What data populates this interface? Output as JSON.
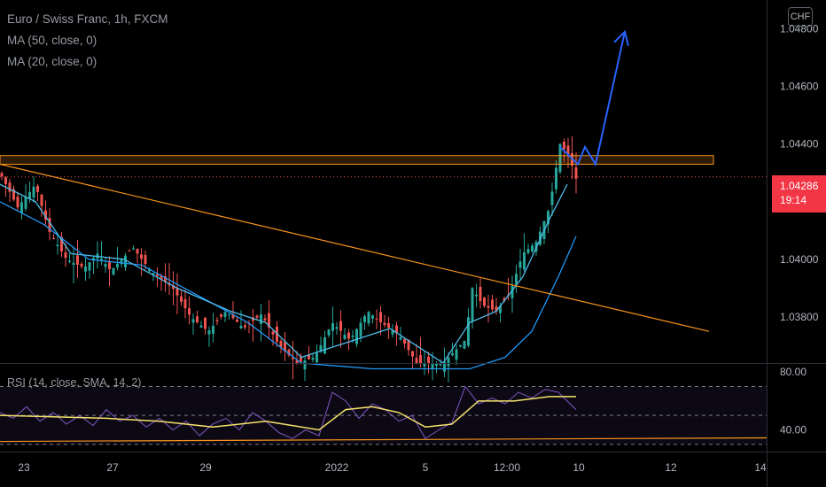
{
  "legend": {
    "symbol": "Euro / Swiss Franc, 1h, FXCM",
    "ma50": "MA (50, close, 0)",
    "ma20": "MA (20, close, 0)"
  },
  "rsi_legend": "RSI (14, close, SMA, 14, 2)",
  "currency": "CHF",
  "last_price": {
    "value": "1.04286",
    "countdown": "19:14"
  },
  "colors": {
    "up": "#26a69a",
    "down": "#ef5350",
    "ma50": "#2196f3",
    "ma20": "#4dbbe8",
    "trendline": "#f7941d",
    "arrow": "#2962ff",
    "rsi": "#7e57c2",
    "rsi_ma": "#f5e36b",
    "price_tag": "#f23645"
  },
  "chart_data": [
    {
      "type": "candlestick",
      "title": "Euro / Swiss Franc, 1h, FXCM",
      "y_ticks": [
        "1.04800",
        "1.04600",
        "1.04400",
        "1.04000",
        "1.03800"
      ],
      "y_range": [
        1.0364,
        1.049
      ],
      "x_ticks": [
        "23",
        "27",
        "29",
        "2022",
        "5",
        "12:00",
        "10",
        "12",
        "14"
      ],
      "last_price": 1.04286,
      "close_path": [
        [
          0,
          1.043
        ],
        [
          20,
          1.0418
        ],
        [
          40,
          1.0426
        ],
        [
          55,
          1.041
        ],
        [
          75,
          1.04
        ],
        [
          95,
          1.0397
        ],
        [
          110,
          1.0402
        ],
        [
          125,
          1.0396
        ],
        [
          150,
          1.0404
        ],
        [
          170,
          1.0396
        ],
        [
          195,
          1.039
        ],
        [
          215,
          1.038
        ],
        [
          235,
          1.0375
        ],
        [
          255,
          1.0382
        ],
        [
          275,
          1.0376
        ],
        [
          295,
          1.0381
        ],
        [
          315,
          1.037
        ],
        [
          335,
          1.0364
        ],
        [
          355,
          1.0366
        ],
        [
          375,
          1.0378
        ],
        [
          395,
          1.0372
        ],
        [
          415,
          1.0382
        ],
        [
          430,
          1.0378
        ],
        [
          450,
          1.0374
        ],
        [
          470,
          1.0364
        ],
        [
          500,
          1.0364
        ],
        [
          525,
          1.0372
        ],
        [
          533,
          1.039
        ],
        [
          545,
          1.0384
        ],
        [
          560,
          1.0382
        ],
        [
          575,
          1.0388
        ],
        [
          590,
          1.0402
        ],
        [
          605,
          1.0406
        ],
        [
          620,
          1.0418
        ],
        [
          632,
          1.044
        ],
        [
          642,
          1.0436
        ],
        [
          650,
          1.0428
        ]
      ],
      "series": [
        {
          "name": "MA (50, close, 0)",
          "points": [
            [
              0,
              1.042
            ],
            [
              50,
              1.0412
            ],
            [
              100,
              1.04
            ],
            [
              160,
              1.0398
            ],
            [
              220,
              1.0388
            ],
            [
              280,
              1.0378
            ],
            [
              340,
              1.0364
            ],
            [
              420,
              1.0362
            ],
            [
              480,
              1.0362
            ],
            [
              530,
              1.0362
            ],
            [
              570,
              1.0366
            ],
            [
              600,
              1.0375
            ],
            [
              630,
              1.0394
            ],
            [
              650,
              1.0408
            ]
          ]
        },
        {
          "name": "MA (20, close, 0)",
          "points": [
            [
              0,
              1.0426
            ],
            [
              40,
              1.042
            ],
            [
              80,
              1.0402
            ],
            [
              140,
              1.04
            ],
            [
              200,
              1.039
            ],
            [
              260,
              1.0382
            ],
            [
              300,
              1.0378
            ],
            [
              340,
              1.0366
            ],
            [
              400,
              1.0372
            ],
            [
              440,
              1.0376
            ],
            [
              470,
              1.037
            ],
            [
              500,
              1.0364
            ],
            [
              530,
              1.0378
            ],
            [
              560,
              1.0382
            ],
            [
              590,
              1.0394
            ],
            [
              620,
              1.0414
            ],
            [
              640,
              1.0426
            ]
          ]
        }
      ],
      "annotations": {
        "resistance_zone": [
          1.0433,
          1.0436
        ],
        "trendline": [
          [
            0,
            1.0433
          ],
          [
            800,
            1.0375
          ]
        ],
        "projection": [
          [
            632,
            1.0439
          ],
          [
            652,
            1.0433
          ],
          [
            660,
            1.0439
          ],
          [
            672,
            1.0433
          ],
          [
            705,
            1.0479
          ]
        ]
      }
    },
    {
      "type": "line",
      "title": "RSI (14, close, SMA, 14, 2)",
      "y_ticks": [
        "80.00",
        "40.00"
      ],
      "levels": [
        70,
        50,
        30
      ],
      "ylim": [
        25,
        85
      ],
      "series": [
        {
          "name": "RSI",
          "points": [
            [
              0,
              52
            ],
            [
              15,
              48
            ],
            [
              30,
              56
            ],
            [
              45,
              46
            ],
            [
              60,
              52
            ],
            [
              75,
              44
            ],
            [
              90,
              50
            ],
            [
              105,
              43
            ],
            [
              120,
              54
            ],
            [
              135,
              46
            ],
            [
              150,
              50
            ],
            [
              165,
              42
            ],
            [
              180,
              48
            ],
            [
              195,
              40
            ],
            [
              210,
              46
            ],
            [
              225,
              36
            ],
            [
              240,
              44
            ],
            [
              255,
              48
            ],
            [
              270,
              40
            ],
            [
              285,
              52
            ],
            [
              300,
              46
            ],
            [
              315,
              38
            ],
            [
              330,
              34
            ],
            [
              345,
              40
            ],
            [
              360,
              36
            ],
            [
              375,
              66
            ],
            [
              390,
              60
            ],
            [
              405,
              48
            ],
            [
              420,
              58
            ],
            [
              435,
              54
            ],
            [
              450,
              46
            ],
            [
              465,
              50
            ],
            [
              480,
              34
            ],
            [
              495,
              40
            ],
            [
              510,
              45
            ],
            [
              525,
              70
            ],
            [
              540,
              58
            ],
            [
              555,
              62
            ],
            [
              570,
              58
            ],
            [
              585,
              66
            ],
            [
              600,
              62
            ],
            [
              615,
              68
            ],
            [
              630,
              66
            ],
            [
              640,
              60
            ],
            [
              650,
              54
            ]
          ]
        },
        {
          "name": "RSI-based MA",
          "points": [
            [
              0,
              50
            ],
            [
              60,
              49
            ],
            [
              120,
              48
            ],
            [
              180,
              46
            ],
            [
              240,
              42
            ],
            [
              300,
              46
            ],
            [
              360,
              40
            ],
            [
              390,
              54
            ],
            [
              420,
              56
            ],
            [
              450,
              52
            ],
            [
              480,
              42
            ],
            [
              510,
              44
            ],
            [
              540,
              60
            ],
            [
              580,
              60
            ],
            [
              620,
              63
            ],
            [
              650,
              63
            ]
          ]
        }
      ]
    }
  ]
}
